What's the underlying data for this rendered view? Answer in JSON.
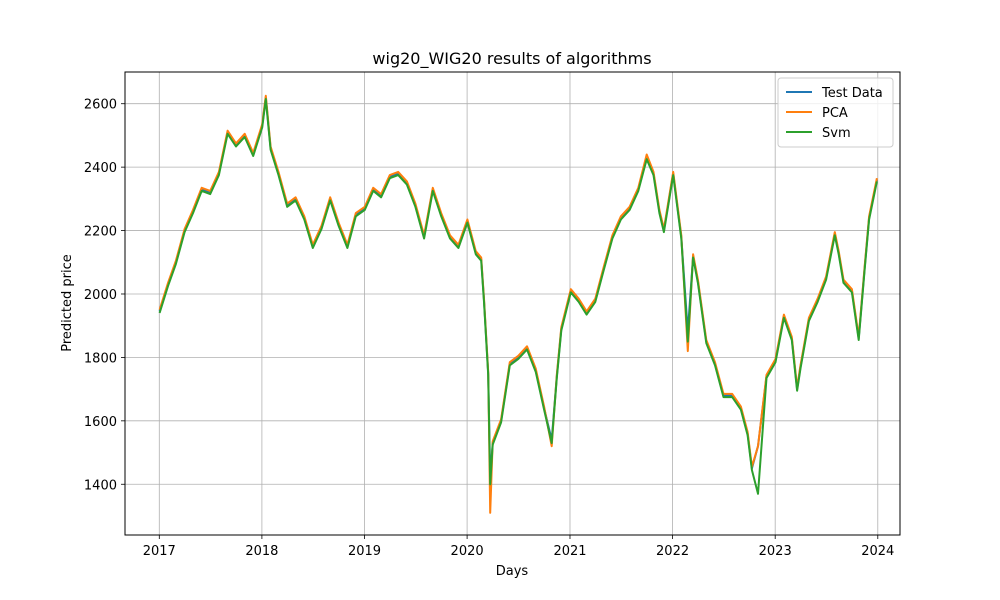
{
  "chart_data": {
    "type": "line",
    "title": "wig20_WIG20 results of algorithms",
    "xlabel": "Days",
    "ylabel": "Predicted price",
    "xlim": [
      "2016-09-01",
      "2024-03-20"
    ],
    "ylim": [
      1240,
      2700
    ],
    "x_ticks": [
      "2017",
      "2018",
      "2019",
      "2020",
      "2021",
      "2022",
      "2023",
      "2024"
    ],
    "y_ticks": [
      1400,
      1600,
      1800,
      2000,
      2200,
      2400,
      2600
    ],
    "grid": true,
    "legend_position": "top-right",
    "x": [
      "2017-01-02",
      "2017-02-01",
      "2017-03-01",
      "2017-04-01",
      "2017-05-01",
      "2017-06-01",
      "2017-07-01",
      "2017-08-01",
      "2017-09-01",
      "2017-10-01",
      "2017-11-01",
      "2017-12-01",
      "2018-01-02",
      "2018-01-15",
      "2018-02-01",
      "2018-03-01",
      "2018-04-01",
      "2018-05-01",
      "2018-06-01",
      "2018-07-01",
      "2018-08-01",
      "2018-09-01",
      "2018-10-01",
      "2018-11-01",
      "2018-12-01",
      "2019-01-02",
      "2019-02-01",
      "2019-03-01",
      "2019-04-01",
      "2019-05-01",
      "2019-06-01",
      "2019-07-01",
      "2019-08-01",
      "2019-09-01",
      "2019-10-01",
      "2019-11-01",
      "2019-12-01",
      "2020-01-02",
      "2020-02-01",
      "2020-02-20",
      "2020-03-01",
      "2020-03-16",
      "2020-03-23",
      "2020-04-01",
      "2020-05-01",
      "2020-06-01",
      "2020-07-01",
      "2020-08-01",
      "2020-09-01",
      "2020-10-01",
      "2020-10-28",
      "2020-11-15",
      "2020-12-01",
      "2021-01-04",
      "2021-02-01",
      "2021-03-01",
      "2021-04-01",
      "2021-05-01",
      "2021-06-01",
      "2021-07-01",
      "2021-08-01",
      "2021-09-01",
      "2021-10-01",
      "2021-10-25",
      "2021-11-15",
      "2021-12-01",
      "2022-01-03",
      "2022-02-01",
      "2022-02-24",
      "2022-03-15",
      "2022-04-01",
      "2022-05-01",
      "2022-06-01",
      "2022-07-01",
      "2022-08-01",
      "2022-09-01",
      "2022-09-25",
      "2022-10-10",
      "2022-11-01",
      "2022-12-01",
      "2023-01-02",
      "2023-02-01",
      "2023-03-01",
      "2023-03-20",
      "2023-04-01",
      "2023-05-01",
      "2023-06-01",
      "2023-07-01",
      "2023-08-01",
      "2023-08-15",
      "2023-09-01",
      "2023-10-01",
      "2023-10-25",
      "2023-11-15",
      "2023-12-01",
      "2023-12-29"
    ],
    "series": [
      {
        "name": "Test Data",
        "color": "#1f77b4",
        "values": [
          1945,
          2030,
          2100,
          2200,
          2260,
          2330,
          2320,
          2380,
          2510,
          2470,
          2500,
          2440,
          2530,
          2620,
          2460,
          2380,
          2280,
          2300,
          2240,
          2150,
          2210,
          2300,
          2220,
          2150,
          2250,
          2270,
          2330,
          2310,
          2370,
          2380,
          2350,
          2280,
          2180,
          2330,
          2250,
          2180,
          2150,
          2230,
          2130,
          2110,
          1980,
          1750,
          1420,
          1530,
          1600,
          1780,
          1800,
          1830,
          1760,
          1640,
          1540,
          1740,
          1890,
          2010,
          1980,
          1940,
          1980,
          2080,
          2180,
          2240,
          2270,
          2330,
          2430,
          2380,
          2260,
          2200,
          2380,
          2180,
          1880,
          2120,
          2040,
          1850,
          1780,
          1680,
          1680,
          1640,
          1560,
          1450,
          1520,
          1740,
          1790,
          1930,
          1860,
          1700,
          1770,
          1920,
          1980,
          2050,
          2190,
          2130,
          2040,
          2010,
          1860,
          2080,
          2240,
          2360
        ]
      },
      {
        "name": "PCA",
        "color": "#ff7f0e",
        "values": [
          1950,
          2035,
          2105,
          2205,
          2265,
          2335,
          2325,
          2385,
          2515,
          2475,
          2505,
          2445,
          2535,
          2625,
          2465,
          2385,
          2285,
          2305,
          2245,
          2155,
          2215,
          2305,
          2225,
          2155,
          2255,
          2275,
          2335,
          2315,
          2375,
          2385,
          2355,
          2285,
          2185,
          2335,
          2255,
          2185,
          2155,
          2235,
          2135,
          2115,
          1985,
          1755,
          1310,
          1535,
          1605,
          1785,
          1805,
          1835,
          1765,
          1645,
          1520,
          1745,
          1895,
          2015,
          1985,
          1945,
          1985,
          2085,
          2185,
          2245,
          2275,
          2335,
          2440,
          2385,
          2265,
          2205,
          2385,
          2185,
          1820,
          2125,
          2045,
          1855,
          1785,
          1685,
          1685,
          1645,
          1565,
          1455,
          1520,
          1745,
          1795,
          1935,
          1865,
          1705,
          1775,
          1925,
          1985,
          2055,
          2195,
          2135,
          2045,
          2015,
          1865,
          2085,
          2245,
          2365
        ]
      },
      {
        "name": "Svm",
        "color": "#2ca02c",
        "values": [
          1940,
          2025,
          2095,
          2195,
          2255,
          2325,
          2315,
          2375,
          2505,
          2465,
          2495,
          2435,
          2525,
          2615,
          2455,
          2375,
          2275,
          2295,
          2235,
          2145,
          2205,
          2295,
          2215,
          2145,
          2245,
          2265,
          2325,
          2305,
          2365,
          2375,
          2345,
          2275,
          2175,
          2325,
          2245,
          2175,
          2145,
          2225,
          2125,
          2105,
          1975,
          1745,
          1400,
          1525,
          1595,
          1775,
          1795,
          1825,
          1755,
          1635,
          1530,
          1735,
          1885,
          2005,
          1975,
          1935,
          1975,
          2075,
          2175,
          2235,
          2265,
          2325,
          2425,
          2375,
          2255,
          2195,
          2375,
          2175,
          1850,
          2115,
          2035,
          1845,
          1775,
          1675,
          1675,
          1635,
          1555,
          1445,
          1370,
          1735,
          1785,
          1925,
          1855,
          1695,
          1765,
          1915,
          1975,
          2045,
          2185,
          2125,
          2035,
          2005,
          1855,
          2075,
          2235,
          2355
        ]
      }
    ]
  }
}
